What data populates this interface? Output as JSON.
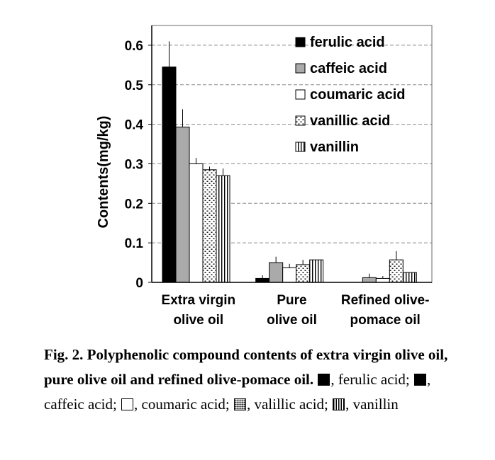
{
  "chart_data": {
    "type": "bar",
    "title": "",
    "xlabel": "",
    "ylabel": "Contents(mg/kg)",
    "ylim": [
      0,
      0.65
    ],
    "yticks": [
      0,
      0.1,
      0.2,
      0.3,
      0.4,
      0.5,
      0.6
    ],
    "ytick_labels": [
      "0",
      "0.1",
      "0.2",
      "0.3",
      "0.4",
      "0.5",
      "0.6"
    ],
    "grid": "horizontal dashed",
    "legend_position": "top-right",
    "categories": [
      [
        "Extra virgin",
        "olive oil"
      ],
      [
        "Pure",
        "olive oil"
      ],
      [
        "Refined olive-",
        "pomace  oil"
      ]
    ],
    "series": [
      {
        "name": "ferulic acid",
        "pattern": "solid",
        "color": "#000000",
        "values": [
          0.545,
          0.01,
          0.0
        ],
        "errors": [
          0.065,
          0.008,
          0.0
        ]
      },
      {
        "name": "caffeic acid",
        "pattern": "solid",
        "color": "#aaaaaa",
        "values": [
          0.393,
          0.05,
          0.012
        ],
        "errors": [
          0.045,
          0.015,
          0.01
        ]
      },
      {
        "name": "coumaric acid",
        "pattern": "solid",
        "color": "#ffffff",
        "values": [
          0.3,
          0.037,
          0.01
        ],
        "errors": [
          0.015,
          0.01,
          0.006
        ]
      },
      {
        "name": "vanillic acid",
        "pattern": "dots",
        "color": "#ffffff",
        "values": [
          0.285,
          0.045,
          0.057
        ],
        "errors": [
          0.008,
          0.012,
          0.022
        ]
      },
      {
        "name": "vanillin",
        "pattern": "vertical-lines",
        "color": "#ffffff",
        "values": [
          0.27,
          0.057,
          0.025
        ],
        "errors": [
          0.018,
          0.0,
          0.0
        ]
      }
    ]
  },
  "caption": {
    "title": "Fig. 2. Polyphenolic compound contents of extra virgin olive oil, pure olive oil and refined olive-pomace oil.",
    "item1": ", ferulic acid; ",
    "item2": ", caffeic acid; ",
    "item3": ", coumaric acid; ",
    "item4": ", valillic acid; ",
    "item5": ", vanillin"
  }
}
